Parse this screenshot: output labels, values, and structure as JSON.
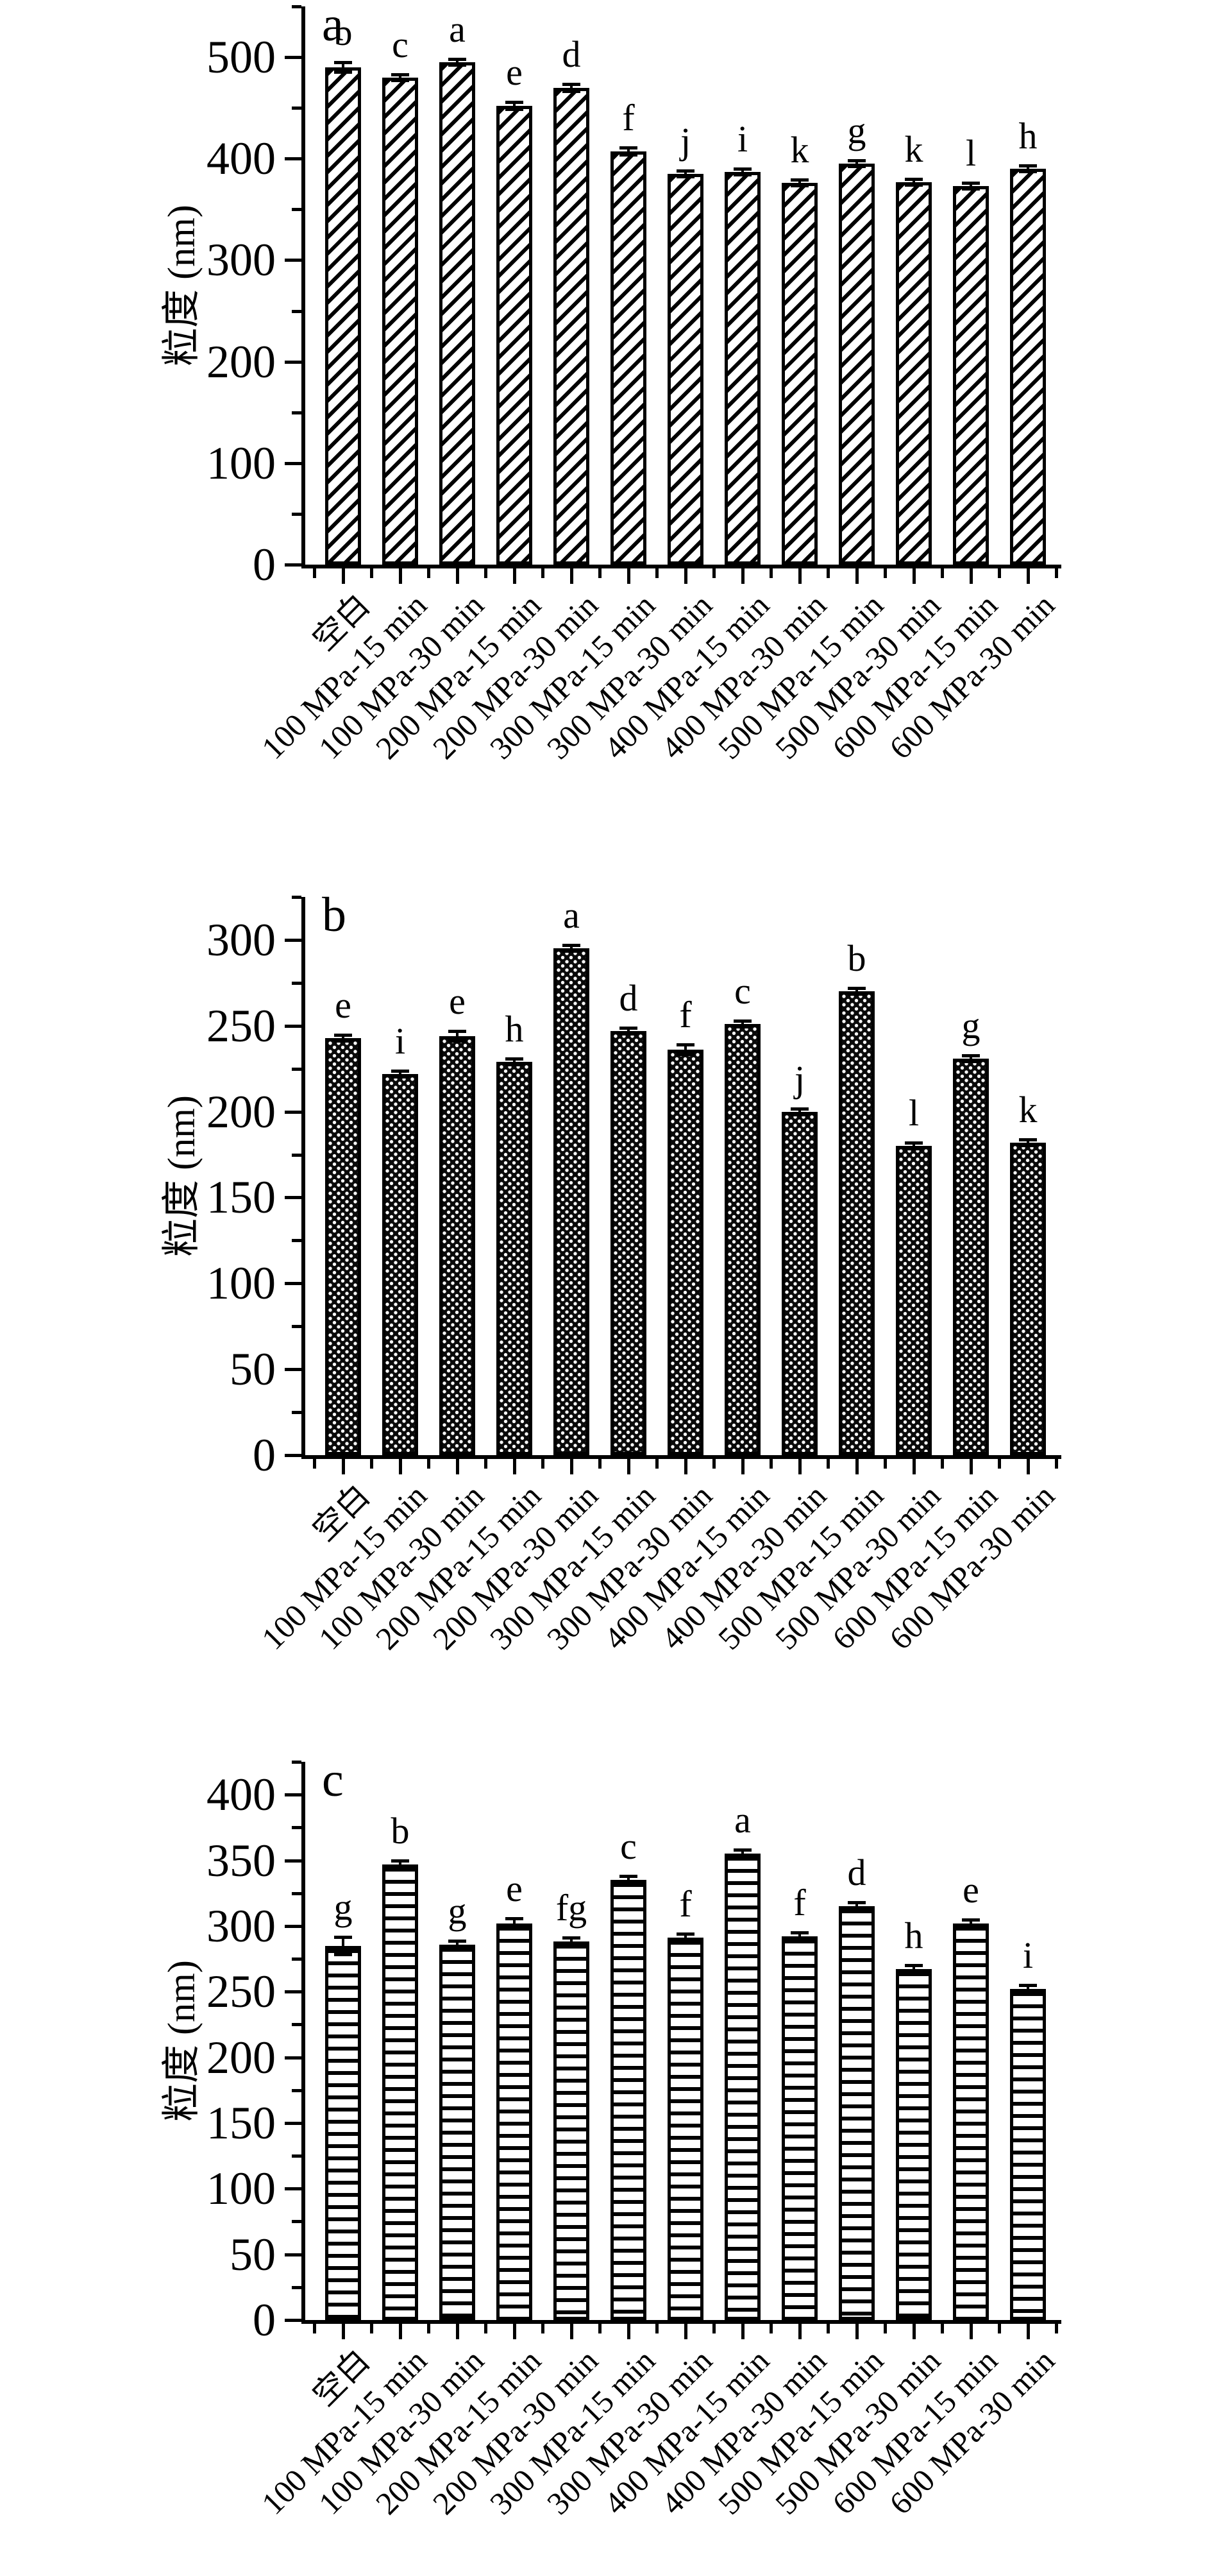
{
  "figure": {
    "background_color": "#ffffff",
    "ink_color": "#000000",
    "description_visible_text_only": true
  },
  "chart_data": [
    {
      "type": "bar",
      "panel_label": "a",
      "ylabel": "粒度 (nm)",
      "xlabel": "",
      "ylim": [
        0,
        550
      ],
      "yticks": [
        0,
        100,
        200,
        300,
        400,
        500
      ],
      "minor_tick_step": 50,
      "grid": false,
      "legend_position": "none",
      "bar_pattern": "diagonal-hatch",
      "categories": [
        "空白",
        "100 MPa-15 min",
        "100 MPa-30 min",
        "200 MPa-15 min",
        "200 MPa-30 min",
        "300 MPa-15 min",
        "300 MPa-30 min",
        "400 MPa-15 min",
        "400 MPa-30 min",
        "500 MPa-15 min",
        "500 MPa-30 min",
        "600 MPa-15 min",
        "600 MPa-30 min"
      ],
      "values": [
        490,
        480,
        495,
        452,
        470,
        407,
        385,
        387,
        376,
        395,
        377,
        373,
        390
      ],
      "errors": [
        5,
        3,
        3,
        4,
        4,
        4,
        3,
        3,
        3,
        3,
        3,
        3,
        3
      ],
      "significance_letters": [
        "b",
        "c",
        "a",
        "e",
        "d",
        "f",
        "j",
        "i",
        "k",
        "g",
        "k",
        "l",
        "h"
      ]
    },
    {
      "type": "bar",
      "panel_label": "b",
      "ylabel": "粒度 (nm)",
      "xlabel": "",
      "ylim": [
        0,
        325
      ],
      "yticks": [
        0,
        50,
        100,
        150,
        200,
        250,
        300
      ],
      "minor_tick_step": 25,
      "grid": false,
      "legend_position": "none",
      "bar_pattern": "dot-grid",
      "categories": [
        "空白",
        "100 MPa-15 min",
        "100 MPa-30 min",
        "200 MPa-15 min",
        "200 MPa-30 min",
        "300 MPa-15 min",
        "300 MPa-30 min",
        "400 MPa-15 min",
        "400 MPa-30 min",
        "500 MPa-15 min",
        "500 MPa-30 min",
        "600 MPa-15 min",
        "600 MPa-30 min"
      ],
      "values": [
        243,
        222,
        244,
        229,
        295,
        247,
        236,
        251,
        200,
        270,
        180,
        231,
        182
      ],
      "errors": [
        2,
        2,
        3,
        2,
        2,
        2,
        3,
        2,
        2,
        2,
        2,
        2,
        2
      ],
      "significance_letters": [
        "e",
        "i",
        "e",
        "h",
        "a",
        "d",
        "f",
        "c",
        "j",
        "b",
        "l",
        "g",
        "k"
      ]
    },
    {
      "type": "bar",
      "panel_label": "c",
      "ylabel": "粒度 (nm)",
      "xlabel": "",
      "ylim": [
        0,
        425
      ],
      "yticks": [
        0,
        50,
        100,
        150,
        200,
        250,
        300,
        350,
        400
      ],
      "minor_tick_step": 25,
      "grid": false,
      "legend_position": "none",
      "bar_pattern": "horizontal-stripes",
      "categories": [
        "空白",
        "100 MPa-15 min",
        "100 MPa-30 min",
        "200 MPa-15 min",
        "200 MPa-30 min",
        "300 MPa-15 min",
        "300 MPa-30 min",
        "400 MPa-15 min",
        "400 MPa-30 min",
        "500 MPa-15 min",
        "500 MPa-30 min",
        "600 MPa-15 min",
        "600 MPa-30 min"
      ],
      "values": [
        285,
        347,
        286,
        302,
        288,
        335,
        291,
        355,
        292,
        315,
        267,
        302,
        252
      ],
      "errors": [
        7,
        3,
        3,
        4,
        3,
        3,
        3,
        3,
        3,
        3,
        3,
        3,
        3
      ],
      "significance_letters": [
        "g",
        "b",
        "g",
        "e",
        "fg",
        "c",
        "f",
        "a",
        "f",
        "d",
        "h",
        "e",
        "i"
      ]
    }
  ]
}
